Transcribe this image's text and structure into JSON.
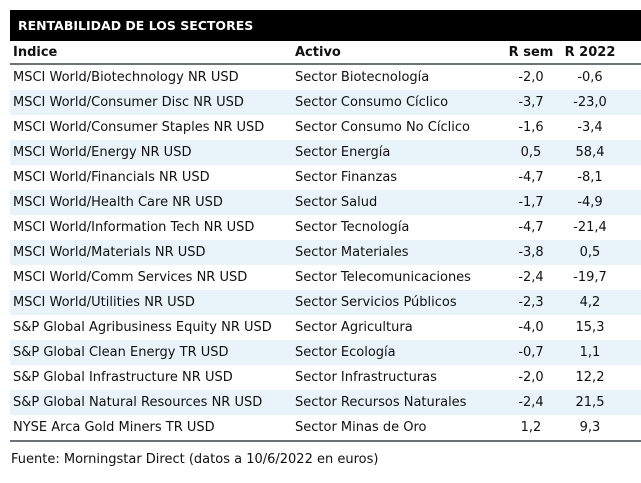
{
  "table": {
    "title": "RENTABILIDAD DE LOS SECTORES",
    "columns": [
      "Índice",
      "Activo",
      "R sem",
      "R 2022"
    ],
    "rows": [
      {
        "indice": "MSCI World/Biotechnology NR USD",
        "activo": "Sector Biotecnología",
        "r_sem": "-2,0",
        "r_2022": "-0,6"
      },
      {
        "indice": "MSCI World/Consumer Disc NR USD",
        "activo": "Sector Consumo Cíclico",
        "r_sem": "-3,7",
        "r_2022": "-23,0"
      },
      {
        "indice": "MSCI World/Consumer Staples NR USD",
        "activo": "Sector Consumo No Cíclico",
        "r_sem": "-1,6",
        "r_2022": "-3,4"
      },
      {
        "indice": "MSCI World/Energy NR USD",
        "activo": "Sector Energía",
        "r_sem": "0,5",
        "r_2022": "58,4"
      },
      {
        "indice": "MSCI World/Financials NR USD",
        "activo": "Sector Finanzas",
        "r_sem": "-4,7",
        "r_2022": "-8,1"
      },
      {
        "indice": "MSCI World/Health Care NR USD",
        "activo": "Sector Salud",
        "r_sem": "-1,7",
        "r_2022": "-4,9"
      },
      {
        "indice": "MSCI World/Information Tech NR USD",
        "activo": "Sector Tecnología",
        "r_sem": "-4,7",
        "r_2022": "-21,4"
      },
      {
        "indice": "MSCI World/Materials NR USD",
        "activo": "Sector Materiales",
        "r_sem": "-3,8",
        "r_2022": "0,5"
      },
      {
        "indice": "MSCI World/Comm Services NR USD",
        "activo": "Sector Telecomunicaciones",
        "r_sem": "-2,4",
        "r_2022": "-19,7"
      },
      {
        "indice": "MSCI World/Utilities NR USD",
        "activo": "Sector Servicios Públicos",
        "r_sem": "-2,3",
        "r_2022": "4,2"
      },
      {
        "indice": "S&P Global Agribusiness Equity NR USD",
        "activo": "Sector Agricultura",
        "r_sem": "-4,0",
        "r_2022": "15,3"
      },
      {
        "indice": "S&P Global Clean Energy TR USD",
        "activo": "Sector Ecología",
        "r_sem": "-0,7",
        "r_2022": "1,1"
      },
      {
        "indice": "S&P Global Infrastructure NR USD",
        "activo": "Sector Infrastructuras",
        "r_sem": "-2,0",
        "r_2022": "12,2"
      },
      {
        "indice": "S&P Global Natural Resources NR USD",
        "activo": "Sector Recursos Naturales",
        "r_sem": "-2,4",
        "r_2022": "21,5"
      },
      {
        "indice": "NYSE Arca Gold Miners TR USD",
        "activo": "Sector Minas de Oro",
        "r_sem": "1,2",
        "r_2022": "9,3"
      }
    ],
    "source": "Fuente: Morningstar Direct (datos a 10/6/2022 en euros)"
  },
  "colors": {
    "title_bg": "#000000",
    "title_text": "#ffffff",
    "row_alt_bg": "#e8f4f9",
    "rule": "#6b7379",
    "text": "#111111"
  },
  "chart_data": {
    "type": "table",
    "title": "RENTABILIDAD DE LOS SECTORES",
    "columns": [
      "Índice",
      "Activo",
      "R sem",
      "R 2022"
    ],
    "categories": [
      "Sector Biotecnología",
      "Sector Consumo Cíclico",
      "Sector Consumo No Cíclico",
      "Sector Energía",
      "Sector Finanzas",
      "Sector Salud",
      "Sector Tecnología",
      "Sector Materiales",
      "Sector Telecomunicaciones",
      "Sector Servicios Públicos",
      "Sector Agricultura",
      "Sector Ecología",
      "Sector Infrastructuras",
      "Sector Recursos Naturales",
      "Sector Minas de Oro"
    ],
    "series": [
      {
        "name": "R sem",
        "values": [
          -2.0,
          -3.7,
          -1.6,
          0.5,
          -4.7,
          -1.7,
          -4.7,
          -3.8,
          -2.4,
          -2.3,
          -4.0,
          -0.7,
          -2.0,
          -2.4,
          1.2
        ]
      },
      {
        "name": "R 2022",
        "values": [
          -0.6,
          -23.0,
          -3.4,
          58.4,
          -8.1,
          -4.9,
          -21.4,
          0.5,
          -19.7,
          4.2,
          15.3,
          1.1,
          12.2,
          21.5,
          9.3
        ]
      }
    ],
    "footnote": "Fuente: Morningstar Direct (datos a 10/6/2022 en euros)"
  }
}
